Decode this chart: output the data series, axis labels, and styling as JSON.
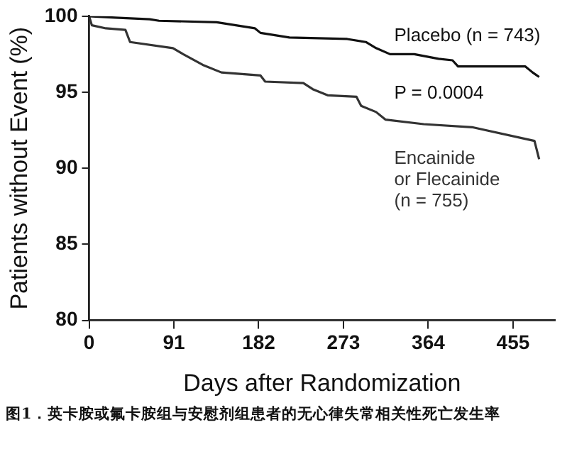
{
  "chart_data": {
    "type": "line",
    "xlabel": "Days after Randomization",
    "ylabel": "Patients without Event (%)",
    "xlim": [
      0,
      500
    ],
    "xticks": [
      0,
      91,
      182,
      273,
      364,
      455
    ],
    "ylim": [
      80,
      100
    ],
    "yticks": [
      80,
      85,
      90,
      95,
      100
    ],
    "grid": false,
    "legend": false,
    "marker": "none",
    "line_style": "solid",
    "series": [
      {
        "name": "Placebo (n = 743)",
        "color": "#111111",
        "x": [
          0,
          28,
          65,
          75,
          137,
          178,
          184,
          215,
          277,
          297,
          308,
          323,
          349,
          375,
          390,
          396,
          437,
          468,
          476,
          483
        ],
        "values": [
          100,
          99.9,
          99.8,
          99.7,
          99.6,
          99.2,
          98.9,
          98.6,
          98.5,
          98.3,
          97.9,
          97.5,
          97.5,
          97.2,
          97.1,
          96.7,
          96.7,
          96.7,
          96.3,
          96.0
        ]
      },
      {
        "name": "Encainide\nor Flecainide\n(n = 755)",
        "color": "#333333",
        "x": [
          0,
          3,
          18,
          39,
          44,
          90,
          101,
          122,
          142,
          184,
          189,
          230,
          240,
          256,
          287,
          292,
          308,
          318,
          359,
          411,
          478,
          483
        ],
        "values": [
          100,
          99.4,
          99.2,
          99.1,
          98.3,
          97.9,
          97.5,
          96.8,
          96.3,
          96.1,
          95.7,
          95.6,
          95.2,
          94.8,
          94.7,
          94.1,
          93.7,
          93.2,
          92.9,
          92.7,
          91.8,
          90.6
        ]
      }
    ],
    "annotations": [
      "P = 0.0004",
      "图1．英卡胺或氟卡胺组与安慰剂组患者的无心律失常相关性死亡发生率"
    ]
  }
}
